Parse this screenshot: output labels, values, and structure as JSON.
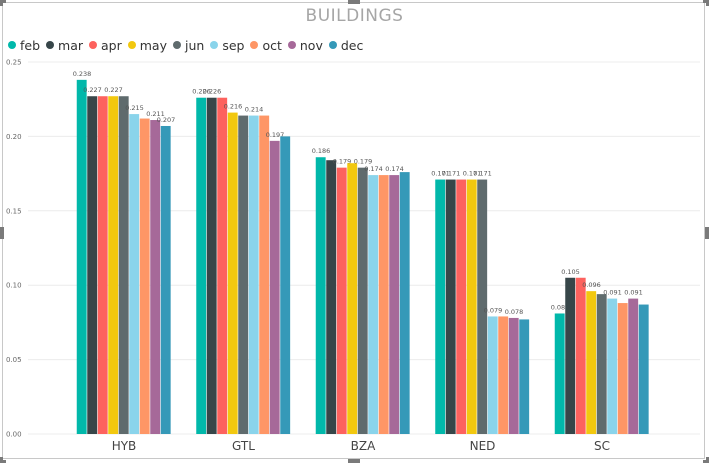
{
  "chart_data": {
    "type": "bar",
    "title": "BUILDINGS",
    "categories": [
      "HYB",
      "GTL",
      "BZA",
      "NED",
      "SC"
    ],
    "ylim": [
      0,
      0.25
    ],
    "yticks": [
      "0.00",
      "0.05",
      "0.10",
      "0.15",
      "0.20",
      "0.25"
    ],
    "grid": true,
    "legend_position": "top-left",
    "series": [
      {
        "name": "feb",
        "color": "#01B8AA",
        "values": [
          0.238,
          0.226,
          0.186,
          0.171,
          0.081
        ],
        "labels": [
          "0.238",
          "0.226",
          "0.186",
          "0.171",
          "0.081"
        ]
      },
      {
        "name": "mar",
        "color": "#374649",
        "values": [
          0.227,
          0.226,
          0.184,
          0.171,
          0.105
        ],
        "labels": [
          "0.227",
          "0.226",
          "",
          "0.171",
          "0.105"
        ]
      },
      {
        "name": "apr",
        "color": "#FD625E",
        "values": [
          0.227,
          0.226,
          0.179,
          0.171,
          0.105
        ],
        "labels": [
          "",
          "",
          "0.179",
          "",
          ""
        ]
      },
      {
        "name": "may",
        "color": "#F2C80F",
        "values": [
          0.227,
          0.216,
          0.182,
          0.171,
          0.096
        ],
        "labels": [
          "0.227",
          "0.216",
          "",
          "0.171",
          "0.096"
        ]
      },
      {
        "name": "jun",
        "color": "#5F6B6D",
        "values": [
          0.227,
          0.214,
          0.179,
          0.171,
          0.094
        ],
        "labels": [
          "",
          "",
          "0.179",
          "0.171",
          ""
        ]
      },
      {
        "name": "sep",
        "color": "#8AD4EB",
        "values": [
          0.215,
          0.214,
          0.174,
          0.079,
          0.091
        ],
        "labels": [
          "0.215",
          "0.214",
          "0.174",
          "0.079",
          "0.091"
        ]
      },
      {
        "name": "oct",
        "color": "#FE9666",
        "values": [
          0.212,
          0.214,
          0.174,
          0.079,
          0.088
        ],
        "labels": [
          "",
          "",
          "",
          "",
          ""
        ]
      },
      {
        "name": "nov",
        "color": "#A66999",
        "values": [
          0.211,
          0.197,
          0.174,
          0.078,
          0.091
        ],
        "labels": [
          "0.211",
          "0.197",
          "0.174",
          "0.078",
          "0.091"
        ]
      },
      {
        "name": "dec",
        "color": "#3599B8",
        "values": [
          0.207,
          0.2,
          0.176,
          0.077,
          0.087
        ],
        "labels": [
          "0.207",
          "",
          "",
          "",
          ""
        ]
      }
    ]
  }
}
